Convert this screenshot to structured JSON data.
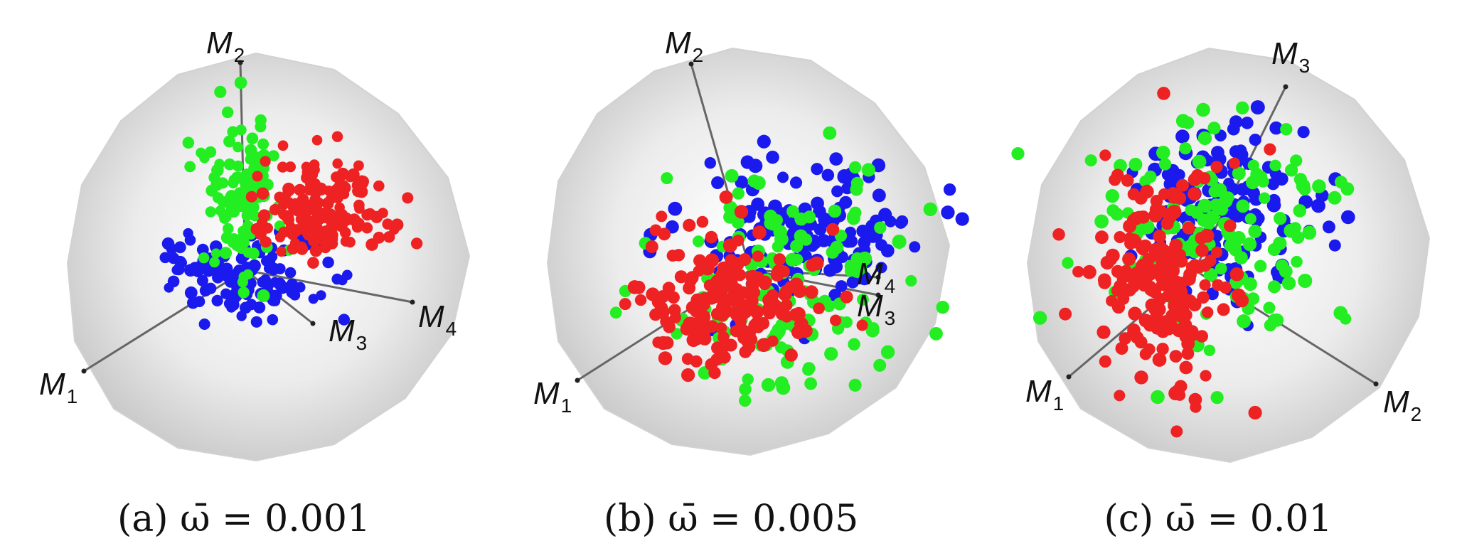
{
  "panels": [
    {
      "id": "a",
      "caption_prefix": "(a)",
      "omega_symbol": "ω̄",
      "equals": "=",
      "omega_value": "0.001",
      "axes": [
        {
          "letter": "M",
          "index": "1"
        },
        {
          "letter": "M",
          "index": "2"
        },
        {
          "letter": "M",
          "index": "3"
        },
        {
          "letter": "M",
          "index": "4"
        }
      ]
    },
    {
      "id": "b",
      "caption_prefix": "(b)",
      "omega_symbol": "ω̄",
      "equals": "=",
      "omega_value": "0.005",
      "axes": [
        {
          "letter": "M",
          "index": "1"
        },
        {
          "letter": "M",
          "index": "2"
        },
        {
          "letter": "M",
          "index": "4"
        },
        {
          "letter": "M",
          "index": "3"
        }
      ]
    },
    {
      "id": "c",
      "caption_prefix": "(c)",
      "omega_symbol": "ω̄",
      "equals": "=",
      "omega_value": "0.01",
      "axes": [
        {
          "letter": "M",
          "index": "1"
        },
        {
          "letter": "M",
          "index": "3"
        },
        {
          "letter": "M",
          "index": "2"
        }
      ]
    }
  ],
  "colors": {
    "cluster_red": "#ee2222",
    "cluster_green": "#22ee22",
    "cluster_blue": "#1a1aee",
    "sphere": "#dcdcdc",
    "axis_line": "#666666"
  }
}
